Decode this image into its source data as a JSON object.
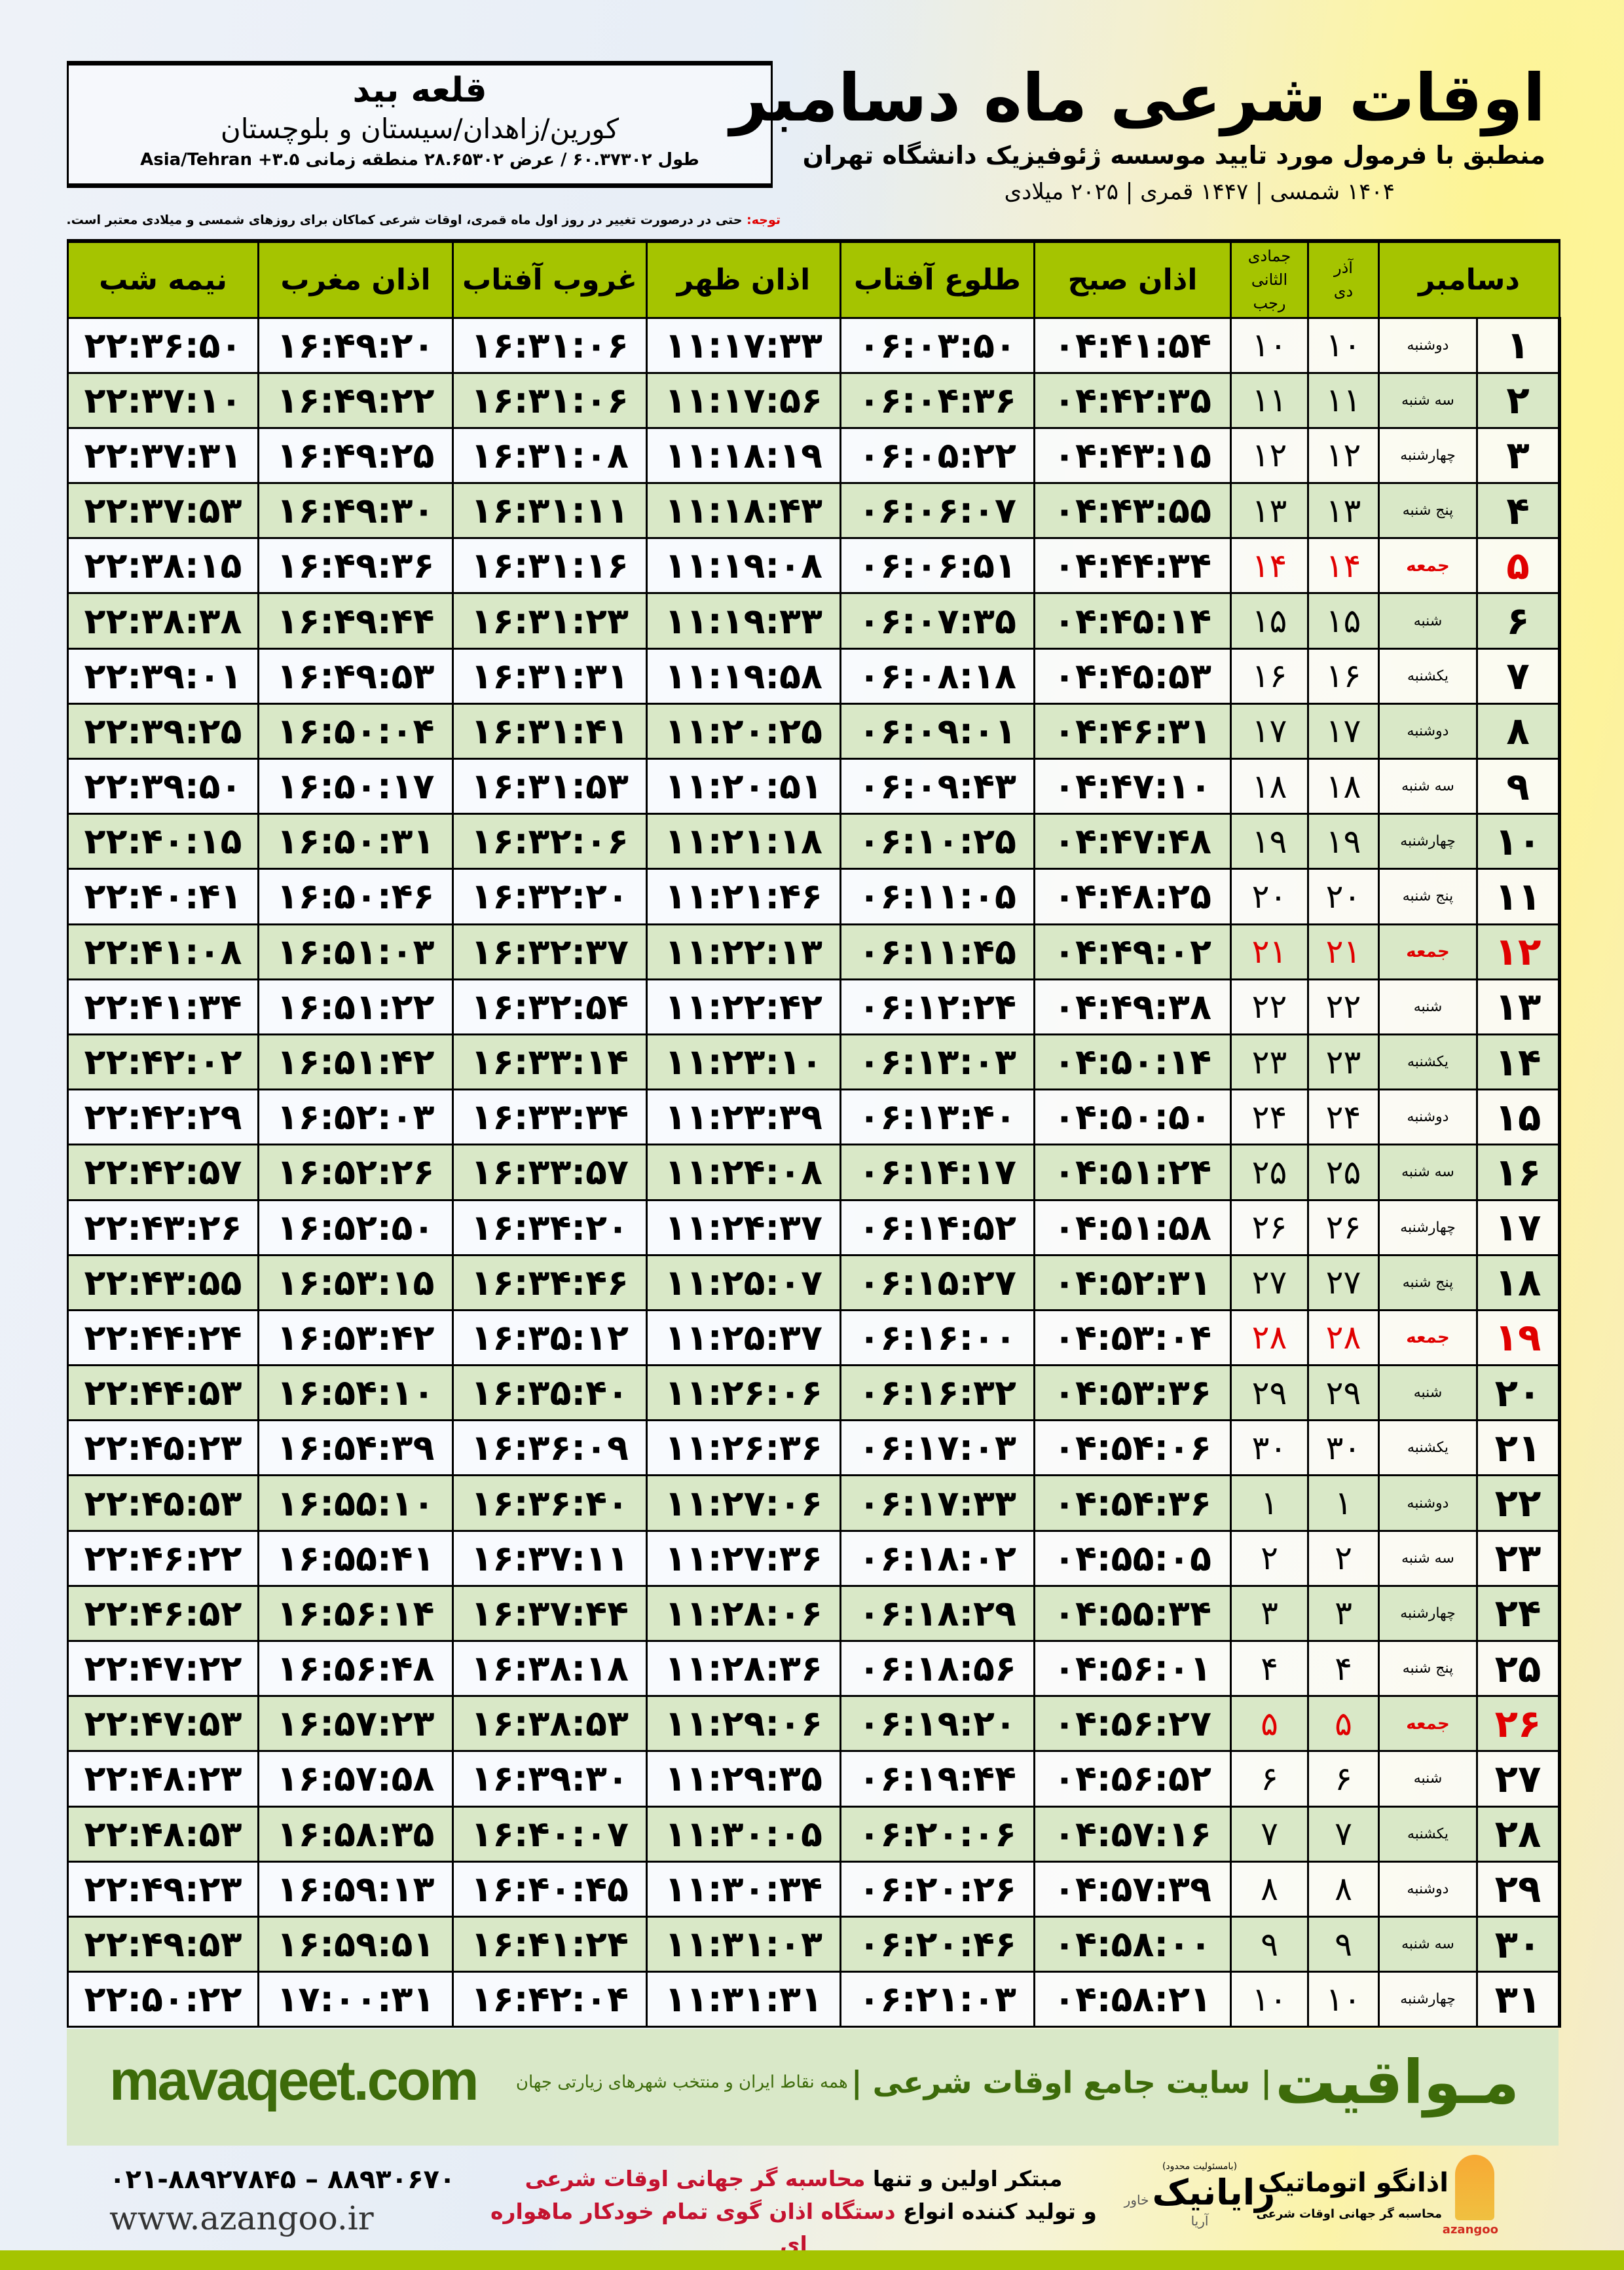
{
  "location": {
    "name": "قلعه بید",
    "region": "کورین/زاهدان/سیستان و بلوچستان",
    "coords": "طول ۶۰.۳۷۳۰۲ / عرض ۲۸.۶۵۳۰۲ منطقه زمانی ۳.۵+ Asia/Tehran"
  },
  "header": {
    "title": "اوقات شرعی ماه دسامبر",
    "subtitle": "منطبق با فرمول مورد تایید موسسه ژئوفیزیک دانشگاه تهران",
    "years": "۱۴۰۴ شمسی | ۱۴۴۷ قمری | ۲۰۲۵ میلادی"
  },
  "note": {
    "label": "توجه:",
    "text": " حتی در درصورت تغییر در روز اول ماه قمری، اوقات شرعی کماکان برای روزهای شمسی و میلادی معتبر است."
  },
  "table": {
    "month_header": "دسامبر",
    "shamsi_top": "آذر",
    "shamsi_bottom": "دی",
    "qamari_top": "جمادی الثانی",
    "qamari_bottom": "رجب",
    "columns": [
      "اذان صبح",
      "طلوع آفتاب",
      "اذان ظهر",
      "غروب آفتاب",
      "اذان مغرب",
      "نیمه شب"
    ],
    "friday_label": "جمعه",
    "colors": {
      "header": "#a5c400",
      "even_row": "#d9e8c7",
      "friday": "#e00000"
    },
    "rows": [
      [
        "۱",
        "دوشنبه",
        "۱۰",
        "۱۰",
        "۰۴:۴۱:۵۴",
        "۰۶:۰۳:۵۰",
        "۱۱:۱۷:۳۳",
        "۱۶:۳۱:۰۶",
        "۱۶:۴۹:۲۰",
        "۲۲:۳۶:۵۰"
      ],
      [
        "۲",
        "سه شنبه",
        "۱۱",
        "۱۱",
        "۰۴:۴۲:۳۵",
        "۰۶:۰۴:۳۶",
        "۱۱:۱۷:۵۶",
        "۱۶:۳۱:۰۶",
        "۱۶:۴۹:۲۲",
        "۲۲:۳۷:۱۰"
      ],
      [
        "۳",
        "چهارشنبه",
        "۱۲",
        "۱۲",
        "۰۴:۴۳:۱۵",
        "۰۶:۰۵:۲۲",
        "۱۱:۱۸:۱۹",
        "۱۶:۳۱:۰۸",
        "۱۶:۴۹:۲۵",
        "۲۲:۳۷:۳۱"
      ],
      [
        "۴",
        "پنج شنبه",
        "۱۳",
        "۱۳",
        "۰۴:۴۳:۵۵",
        "۰۶:۰۶:۰۷",
        "۱۱:۱۸:۴۳",
        "۱۶:۳۱:۱۱",
        "۱۶:۴۹:۳۰",
        "۲۲:۳۷:۵۳"
      ],
      [
        "۵",
        "جمعه",
        "۱۴",
        "۱۴",
        "۰۴:۴۴:۳۴",
        "۰۶:۰۶:۵۱",
        "۱۱:۱۹:۰۸",
        "۱۶:۳۱:۱۶",
        "۱۶:۴۹:۳۶",
        "۲۲:۳۸:۱۵"
      ],
      [
        "۶",
        "شنبه",
        "۱۵",
        "۱۵",
        "۰۴:۴۵:۱۴",
        "۰۶:۰۷:۳۵",
        "۱۱:۱۹:۳۳",
        "۱۶:۳۱:۲۳",
        "۱۶:۴۹:۴۴",
        "۲۲:۳۸:۳۸"
      ],
      [
        "۷",
        "یکشنبه",
        "۱۶",
        "۱۶",
        "۰۴:۴۵:۵۳",
        "۰۶:۰۸:۱۸",
        "۱۱:۱۹:۵۸",
        "۱۶:۳۱:۳۱",
        "۱۶:۴۹:۵۳",
        "۲۲:۳۹:۰۱"
      ],
      [
        "۸",
        "دوشنبه",
        "۱۷",
        "۱۷",
        "۰۴:۴۶:۳۱",
        "۰۶:۰۹:۰۱",
        "۱۱:۲۰:۲۵",
        "۱۶:۳۱:۴۱",
        "۱۶:۵۰:۰۴",
        "۲۲:۳۹:۲۵"
      ],
      [
        "۹",
        "سه شنبه",
        "۱۸",
        "۱۸",
        "۰۴:۴۷:۱۰",
        "۰۶:۰۹:۴۳",
        "۱۱:۲۰:۵۱",
        "۱۶:۳۱:۵۳",
        "۱۶:۵۰:۱۷",
        "۲۲:۳۹:۵۰"
      ],
      [
        "۱۰",
        "چهارشنبه",
        "۱۹",
        "۱۹",
        "۰۴:۴۷:۴۸",
        "۰۶:۱۰:۲۵",
        "۱۱:۲۱:۱۸",
        "۱۶:۳۲:۰۶",
        "۱۶:۵۰:۳۱",
        "۲۲:۴۰:۱۵"
      ],
      [
        "۱۱",
        "پنج شنبه",
        "۲۰",
        "۲۰",
        "۰۴:۴۸:۲۵",
        "۰۶:۱۱:۰۵",
        "۱۱:۲۱:۴۶",
        "۱۶:۳۲:۲۰",
        "۱۶:۵۰:۴۶",
        "۲۲:۴۰:۴۱"
      ],
      [
        "۱۲",
        "جمعه",
        "۲۱",
        "۲۱",
        "۰۴:۴۹:۰۲",
        "۰۶:۱۱:۴۵",
        "۱۱:۲۲:۱۳",
        "۱۶:۳۲:۳۷",
        "۱۶:۵۱:۰۳",
        "۲۲:۴۱:۰۸"
      ],
      [
        "۱۳",
        "شنبه",
        "۲۲",
        "۲۲",
        "۰۴:۴۹:۳۸",
        "۰۶:۱۲:۲۴",
        "۱۱:۲۲:۴۲",
        "۱۶:۳۲:۵۴",
        "۱۶:۵۱:۲۲",
        "۲۲:۴۱:۳۴"
      ],
      [
        "۱۴",
        "یکشنبه",
        "۲۳",
        "۲۳",
        "۰۴:۵۰:۱۴",
        "۰۶:۱۳:۰۳",
        "۱۱:۲۳:۱۰",
        "۱۶:۳۳:۱۴",
        "۱۶:۵۱:۴۲",
        "۲۲:۴۲:۰۲"
      ],
      [
        "۱۵",
        "دوشنبه",
        "۲۴",
        "۲۴",
        "۰۴:۵۰:۵۰",
        "۰۶:۱۳:۴۰",
        "۱۱:۲۳:۳۹",
        "۱۶:۳۳:۳۴",
        "۱۶:۵۲:۰۳",
        "۲۲:۴۲:۲۹"
      ],
      [
        "۱۶",
        "سه شنبه",
        "۲۵",
        "۲۵",
        "۰۴:۵۱:۲۴",
        "۰۶:۱۴:۱۷",
        "۱۱:۲۴:۰۸",
        "۱۶:۳۳:۵۷",
        "۱۶:۵۲:۲۶",
        "۲۲:۴۲:۵۷"
      ],
      [
        "۱۷",
        "چهارشنبه",
        "۲۶",
        "۲۶",
        "۰۴:۵۱:۵۸",
        "۰۶:۱۴:۵۲",
        "۱۱:۲۴:۳۷",
        "۱۶:۳۴:۲۰",
        "۱۶:۵۲:۵۰",
        "۲۲:۴۳:۲۶"
      ],
      [
        "۱۸",
        "پنج شنبه",
        "۲۷",
        "۲۷",
        "۰۴:۵۲:۳۱",
        "۰۶:۱۵:۲۷",
        "۱۱:۲۵:۰۷",
        "۱۶:۳۴:۴۶",
        "۱۶:۵۳:۱۵",
        "۲۲:۴۳:۵۵"
      ],
      [
        "۱۹",
        "جمعه",
        "۲۸",
        "۲۸",
        "۰۴:۵۳:۰۴",
        "۰۶:۱۶:۰۰",
        "۱۱:۲۵:۳۷",
        "۱۶:۳۵:۱۲",
        "۱۶:۵۳:۴۲",
        "۲۲:۴۴:۲۴"
      ],
      [
        "۲۰",
        "شنبه",
        "۲۹",
        "۲۹",
        "۰۴:۵۳:۳۶",
        "۰۶:۱۶:۳۲",
        "۱۱:۲۶:۰۶",
        "۱۶:۳۵:۴۰",
        "۱۶:۵۴:۱۰",
        "۲۲:۴۴:۵۳"
      ],
      [
        "۲۱",
        "یکشنبه",
        "۳۰",
        "۳۰",
        "۰۴:۵۴:۰۶",
        "۰۶:۱۷:۰۳",
        "۱۱:۲۶:۳۶",
        "۱۶:۳۶:۰۹",
        "۱۶:۵۴:۳۹",
        "۲۲:۴۵:۲۳"
      ],
      [
        "۲۲",
        "دوشنبه",
        "۱",
        "۱",
        "۰۴:۵۴:۳۶",
        "۰۶:۱۷:۳۳",
        "۱۱:۲۷:۰۶",
        "۱۶:۳۶:۴۰",
        "۱۶:۵۵:۱۰",
        "۲۲:۴۵:۵۳"
      ],
      [
        "۲۳",
        "سه شنبه",
        "۲",
        "۲",
        "۰۴:۵۵:۰۵",
        "۰۶:۱۸:۰۲",
        "۱۱:۲۷:۳۶",
        "۱۶:۳۷:۱۱",
        "۱۶:۵۵:۴۱",
        "۲۲:۴۶:۲۲"
      ],
      [
        "۲۴",
        "چهارشنبه",
        "۳",
        "۳",
        "۰۴:۵۵:۳۴",
        "۰۶:۱۸:۲۹",
        "۱۱:۲۸:۰۶",
        "۱۶:۳۷:۴۴",
        "۱۶:۵۶:۱۴",
        "۲۲:۴۶:۵۲"
      ],
      [
        "۲۵",
        "پنج شنبه",
        "۴",
        "۴",
        "۰۴:۵۶:۰۱",
        "۰۶:۱۸:۵۶",
        "۱۱:۲۸:۳۶",
        "۱۶:۳۸:۱۸",
        "۱۶:۵۶:۴۸",
        "۲۲:۴۷:۲۲"
      ],
      [
        "۲۶",
        "جمعه",
        "۵",
        "۵",
        "۰۴:۵۶:۲۷",
        "۰۶:۱۹:۲۰",
        "۱۱:۲۹:۰۶",
        "۱۶:۳۸:۵۳",
        "۱۶:۵۷:۲۳",
        "۲۲:۴۷:۵۳"
      ],
      [
        "۲۷",
        "شنبه",
        "۶",
        "۶",
        "۰۴:۵۶:۵۲",
        "۰۶:۱۹:۴۴",
        "۱۱:۲۹:۳۵",
        "۱۶:۳۹:۳۰",
        "۱۶:۵۷:۵۸",
        "۲۲:۴۸:۲۳"
      ],
      [
        "۲۸",
        "یکشنبه",
        "۷",
        "۷",
        "۰۴:۵۷:۱۶",
        "۰۶:۲۰:۰۶",
        "۱۱:۳۰:۰۵",
        "۱۶:۴۰:۰۷",
        "۱۶:۵۸:۳۵",
        "۲۲:۴۸:۵۳"
      ],
      [
        "۲۹",
        "دوشنبه",
        "۸",
        "۸",
        "۰۴:۵۷:۳۹",
        "۰۶:۲۰:۲۶",
        "۱۱:۳۰:۳۴",
        "۱۶:۴۰:۴۵",
        "۱۶:۵۹:۱۳",
        "۲۲:۴۹:۲۳"
      ],
      [
        "۳۰",
        "سه شنبه",
        "۹",
        "۹",
        "۰۴:۵۸:۰۰",
        "۰۶:۲۰:۴۶",
        "۱۱:۳۱:۰۳",
        "۱۶:۴۱:۲۴",
        "۱۶:۵۹:۵۱",
        "۲۲:۴۹:۵۳"
      ],
      [
        "۳۱",
        "چهارشنبه",
        "۱۰",
        "۱۰",
        "۰۴:۵۸:۲۱",
        "۰۶:۲۱:۰۳",
        "۱۱:۳۱:۳۱",
        "۱۶:۴۲:۰۴",
        "۱۷:۰۰:۳۱",
        "۲۲:۵۰:۲۲"
      ]
    ]
  },
  "banner": {
    "site": "mavaqeet.com",
    "brand": "مـواقیت",
    "tagline": "| سایت جامع اوقات شرعی |",
    "tagline_small": "همه نقاط ایران و منتخب شهرهای زیارتی جهان",
    "color": "#3d6b0a"
  },
  "footer": {
    "phones": "۰۲۱-۸۸۹۲۷۸۴۵ – ۸۸۹۳۰۶۷۰",
    "website": "www.azangoo.ir",
    "line1_black": "مبتکر اولین و تنها ",
    "line1_red": "محاسبه گر جهانی اوقات شرعی",
    "line2_black": "و تولید کننده انواع ",
    "line2_red": "دستگاه اذان گوی تمام خودکار ماهواره ای",
    "rayanik_note": "(بامسئولیت محدود)",
    "rayanik": "رایانیک",
    "khavar": "خاور آریا",
    "azangoo_logo": "اذانگو اتوماتیک",
    "azangoo_latin": "azangoo",
    "azangoo_sub": "محاسبه گر جهانی اوقات شرعی"
  }
}
